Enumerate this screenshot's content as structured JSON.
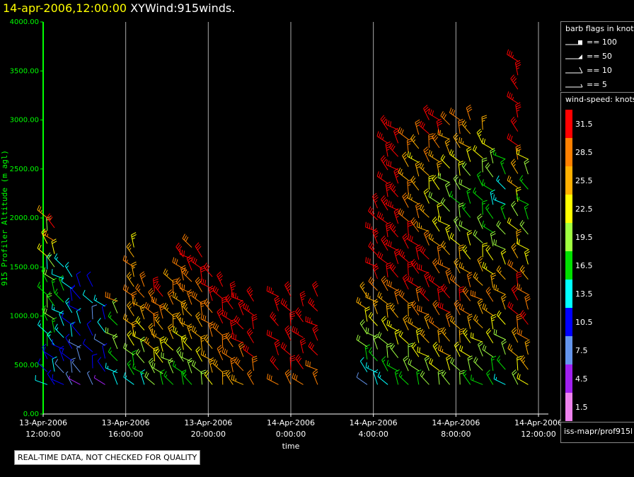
{
  "header": {
    "date": "14-apr-2006,12:00:00",
    "name": "XYWind:915winds."
  },
  "chart_data": {
    "type": "wind-barb profile",
    "ylabel": "915 Profiler Altitude (m agl)",
    "xlabel": "time",
    "ylim": [
      0,
      4000
    ],
    "y_ticks": [
      "0.00",
      "500.00",
      "1000.00",
      "1500.00",
      "2000.00",
      "2500.00",
      "3000.00",
      "3500.00",
      "4000.00"
    ],
    "x_ticks": [
      {
        "date": "13-Apr-2006",
        "time": "12:00:00"
      },
      {
        "date": "13-Apr-2006",
        "time": "16:00:00"
      },
      {
        "date": "13-Apr-2006",
        "time": "20:00:00"
      },
      {
        "date": "14-Apr-2006",
        "time": "0:00:00"
      },
      {
        "date": "14-Apr-2006",
        "time": "4:00:00"
      },
      {
        "date": "14-Apr-2006",
        "time": "8:00:00"
      },
      {
        "date": "14-Apr-2006",
        "time": "12:00:00"
      }
    ],
    "grid_hours": [
      4,
      8,
      12,
      16,
      20,
      24
    ],
    "x_range_hours": [
      0,
      24
    ],
    "profiles": [
      {
        "h": 0.2,
        "top": 2000,
        "speeds": [
          12,
          10,
          11,
          15,
          13,
          17,
          19,
          16,
          15,
          12,
          21,
          23,
          20,
          26
        ]
      },
      {
        "h": 0.55,
        "top": 1900,
        "speeds": [
          9,
          12,
          10,
          14,
          16,
          18,
          15,
          17,
          20,
          19,
          22,
          27,
          30
        ]
      },
      {
        "h": 1.0,
        "top": 1500,
        "speeds": [
          10,
          8,
          9,
          11,
          13,
          12,
          14,
          16,
          15,
          12,
          13
        ]
      },
      {
        "h": 1.4,
        "top": 1400,
        "speeds": [
          6,
          8,
          10,
          9,
          12,
          11,
          13,
          10,
          12,
          14
        ]
      },
      {
        "h": 1.8,
        "top": 1300,
        "speeds": [
          4,
          6,
          8,
          7,
          10,
          12,
          11,
          9,
          10
        ]
      },
      {
        "h": 2.4,
        "top": 1300,
        "speeds": [
          7,
          9,
          10,
          11,
          8,
          12,
          11
        ]
      },
      {
        "h": 3.0,
        "top": 1100,
        "speeds": [
          5,
          9,
          10,
          8,
          12,
          11,
          13
        ]
      },
      {
        "h": 3.6,
        "top": 1150,
        "speeds": [
          12,
          14,
          16,
          18,
          20,
          17,
          19,
          28
        ]
      },
      {
        "h": 4.4,
        "top": 1700,
        "speeds": [
          14,
          16,
          17,
          19,
          22,
          24,
          26,
          25,
          27,
          28,
          25,
          26,
          27,
          24,
          23
        ]
      },
      {
        "h": 4.9,
        "top": 1300,
        "speeds": [
          14,
          16,
          18,
          20,
          22,
          23,
          25,
          26,
          27,
          28
        ]
      },
      {
        "h": 5.4,
        "top": 1250,
        "speeds": [
          18,
          20,
          22,
          24,
          26,
          27,
          28,
          29,
          30
        ]
      },
      {
        "h": 5.8,
        "top": 1200,
        "speeds": [
          17,
          19,
          21,
          23,
          24,
          26,
          28,
          29,
          30
        ]
      },
      {
        "h": 6.3,
        "top": 1350,
        "speeds": [
          16,
          18,
          20,
          22,
          24,
          25,
          26,
          27,
          28,
          26
        ]
      },
      {
        "h": 6.8,
        "top": 1600,
        "speeds": [
          15,
          17,
          19,
          21,
          23,
          24,
          25,
          26,
          27,
          28,
          29,
          30
        ]
      },
      {
        "h": 7.2,
        "top": 1700,
        "speeds": [
          16,
          18,
          20,
          22,
          24,
          26,
          25,
          27,
          28,
          29,
          30,
          31,
          28
        ]
      },
      {
        "h": 7.7,
        "top": 1600,
        "speeds": [
          18,
          20,
          22,
          24,
          25,
          26,
          27,
          28,
          29,
          30,
          31,
          32
        ]
      },
      {
        "h": 8.2,
        "top": 1400,
        "speeds": [
          22,
          24,
          25,
          26,
          27,
          28,
          29,
          30,
          31,
          32
        ]
      },
      {
        "h": 8.7,
        "top": 1300,
        "speeds": [
          24,
          26,
          27,
          28,
          29,
          30,
          31,
          32,
          33
        ]
      },
      {
        "h": 9.2,
        "top": 1200,
        "speeds": [
          25,
          27,
          28,
          29,
          30,
          31,
          32,
          33
        ]
      },
      {
        "h": 9.7,
        "top": 1150,
        "speeds": [
          26,
          28,
          29,
          30,
          31,
          32,
          33
        ]
      },
      {
        "h": 10.2,
        "top": 1150,
        "speeds": [
          27,
          29,
          30,
          31,
          32,
          33,
          34
        ]
      },
      {
        "h": 11.4,
        "top": 1200,
        "speeds": [
          28,
          30,
          31,
          32,
          33,
          34,
          33
        ]
      },
      {
        "h": 12.0,
        "top": 1200,
        "speeds": [
          29,
          31,
          32,
          33,
          34,
          35,
          33
        ]
      },
      {
        "h": 12.6,
        "top": 1100,
        "speeds": [
          28,
          30,
          32,
          33,
          34,
          33
        ]
      },
      {
        "h": 13.3,
        "top": 1200,
        "speeds": [
          27,
          29,
          31,
          32,
          33,
          34,
          32
        ]
      },
      {
        "h": 15.7,
        "top": 1200,
        "speeds": [
          8,
          12,
          15,
          18,
          20,
          22,
          24,
          26
        ]
      },
      {
        "h": 16.2,
        "top": 2100,
        "speeds": [
          12,
          14,
          16,
          18,
          20,
          22,
          24,
          26,
          28,
          30,
          32,
          33,
          34,
          34,
          35,
          34
        ]
      },
      {
        "h": 16.7,
        "top": 2900,
        "speeds": [
          14,
          16,
          18,
          20,
          22,
          24,
          26,
          28,
          30,
          32,
          33,
          34,
          35,
          34,
          33,
          32,
          31,
          33,
          34,
          35
        ]
      },
      {
        "h": 17.2,
        "top": 2900,
        "speeds": [
          15,
          17,
          19,
          21,
          23,
          25,
          27,
          29,
          30,
          31,
          32,
          33,
          34,
          35,
          34,
          33,
          32,
          31,
          30,
          31
        ]
      },
      {
        "h": 17.7,
        "top": 2800,
        "speeds": [
          16,
          18,
          20,
          22,
          24,
          26,
          28,
          30,
          32,
          33,
          31,
          30,
          29,
          28,
          27,
          26,
          25,
          27,
          29
        ]
      },
      {
        "h": 18.2,
        "top": 2850,
        "speeds": [
          17,
          19,
          21,
          23,
          25,
          27,
          29,
          30,
          31,
          32,
          30,
          28,
          27,
          26,
          25,
          24,
          23,
          25,
          27
        ]
      },
      {
        "h": 18.7,
        "top": 3000,
        "speeds": [
          18,
          20,
          22,
          24,
          26,
          28,
          30,
          31,
          32,
          30,
          28,
          26,
          24,
          22,
          23,
          25,
          27,
          29,
          31,
          32
        ]
      },
      {
        "h": 19.2,
        "top": 3000,
        "speeds": [
          19,
          21,
          23,
          25,
          27,
          29,
          30,
          31,
          29,
          27,
          25,
          23,
          21,
          20,
          22,
          24,
          26,
          28,
          30,
          31
        ]
      },
      {
        "h": 19.7,
        "top": 2950,
        "speeds": [
          20,
          22,
          24,
          26,
          28,
          30,
          31,
          29,
          27,
          25,
          23,
          21,
          19,
          18,
          20,
          22,
          24,
          26,
          28
        ]
      },
      {
        "h": 20.2,
        "top": 3000,
        "speeds": [
          18,
          20,
          22,
          24,
          26,
          28,
          30,
          28,
          26,
          24,
          22,
          20,
          18,
          17,
          19,
          21,
          23,
          25,
          27,
          29
        ]
      },
      {
        "h": 20.7,
        "top": 3000,
        "speeds": [
          17,
          19,
          21,
          23,
          25,
          27,
          29,
          27,
          25,
          23,
          21,
          19,
          17,
          16,
          18,
          20,
          22,
          24,
          26,
          28
        ]
      },
      {
        "h": 21.3,
        "top": 2900,
        "speeds": [
          16,
          18,
          20,
          22,
          24,
          26,
          28,
          26,
          24,
          22,
          20,
          18,
          16,
          15,
          17,
          19,
          21,
          23,
          25
        ]
      },
      {
        "h": 21.8,
        "top": 2700,
        "speeds": [
          15,
          17,
          19,
          21,
          23,
          25,
          27,
          25,
          23,
          21,
          19,
          17,
          15,
          14,
          16,
          18,
          20,
          22
        ]
      },
      {
        "h": 22.4,
        "top": 2600,
        "speeds": [
          14,
          16,
          18,
          20,
          22,
          24,
          26,
          24,
          22,
          20,
          18,
          16,
          14,
          13,
          15,
          17
        ]
      },
      {
        "h": 23.0,
        "top": 3600,
        "speeds": [
          20,
          22,
          24,
          26,
          28,
          30,
          32,
          30,
          28,
          26,
          24,
          22,
          20,
          22,
          24,
          26,
          28,
          30,
          32,
          33,
          34,
          35,
          33,
          34
        ]
      },
      {
        "h": 23.5,
        "top": 2600,
        "speeds": [
          22,
          24,
          26,
          28,
          30,
          29,
          27,
          25,
          23,
          21,
          19,
          17,
          15,
          17,
          19,
          21
        ]
      }
    ]
  },
  "legend": {
    "flags_title": "barb flags in knots",
    "flags": [
      "== 100",
      "== 50",
      "== 10",
      "== 5"
    ],
    "speed_title": "wind-speed: knots",
    "speed_classes": [
      {
        "value": "31.5",
        "color": "#ff0000"
      },
      {
        "value": "28.5",
        "color": "#ff8000"
      },
      {
        "value": "25.5",
        "color": "#ffb000"
      },
      {
        "value": "22.5",
        "color": "#ffff00"
      },
      {
        "value": "19.5",
        "color": "#a0ff40"
      },
      {
        "value": "16.5",
        "color": "#00e000"
      },
      {
        "value": "13.5",
        "color": "#00ffff"
      },
      {
        "value": "10.5",
        "color": "#0000ff"
      },
      {
        "value": "7.5",
        "color": "#6495ed"
      },
      {
        "value": "4.5",
        "color": "#a020f0"
      },
      {
        "value": "1.5",
        "color": "#ee82ee"
      }
    ],
    "source": "iss-mapr/prof915l"
  },
  "footer": {
    "quality_note": "REAL-TIME DATA, NOT CHECKED FOR QUALITY"
  },
  "colors": {
    "axis": "#00ff00",
    "grid": "#aaaaaa",
    "title_date": "#ffff00"
  }
}
